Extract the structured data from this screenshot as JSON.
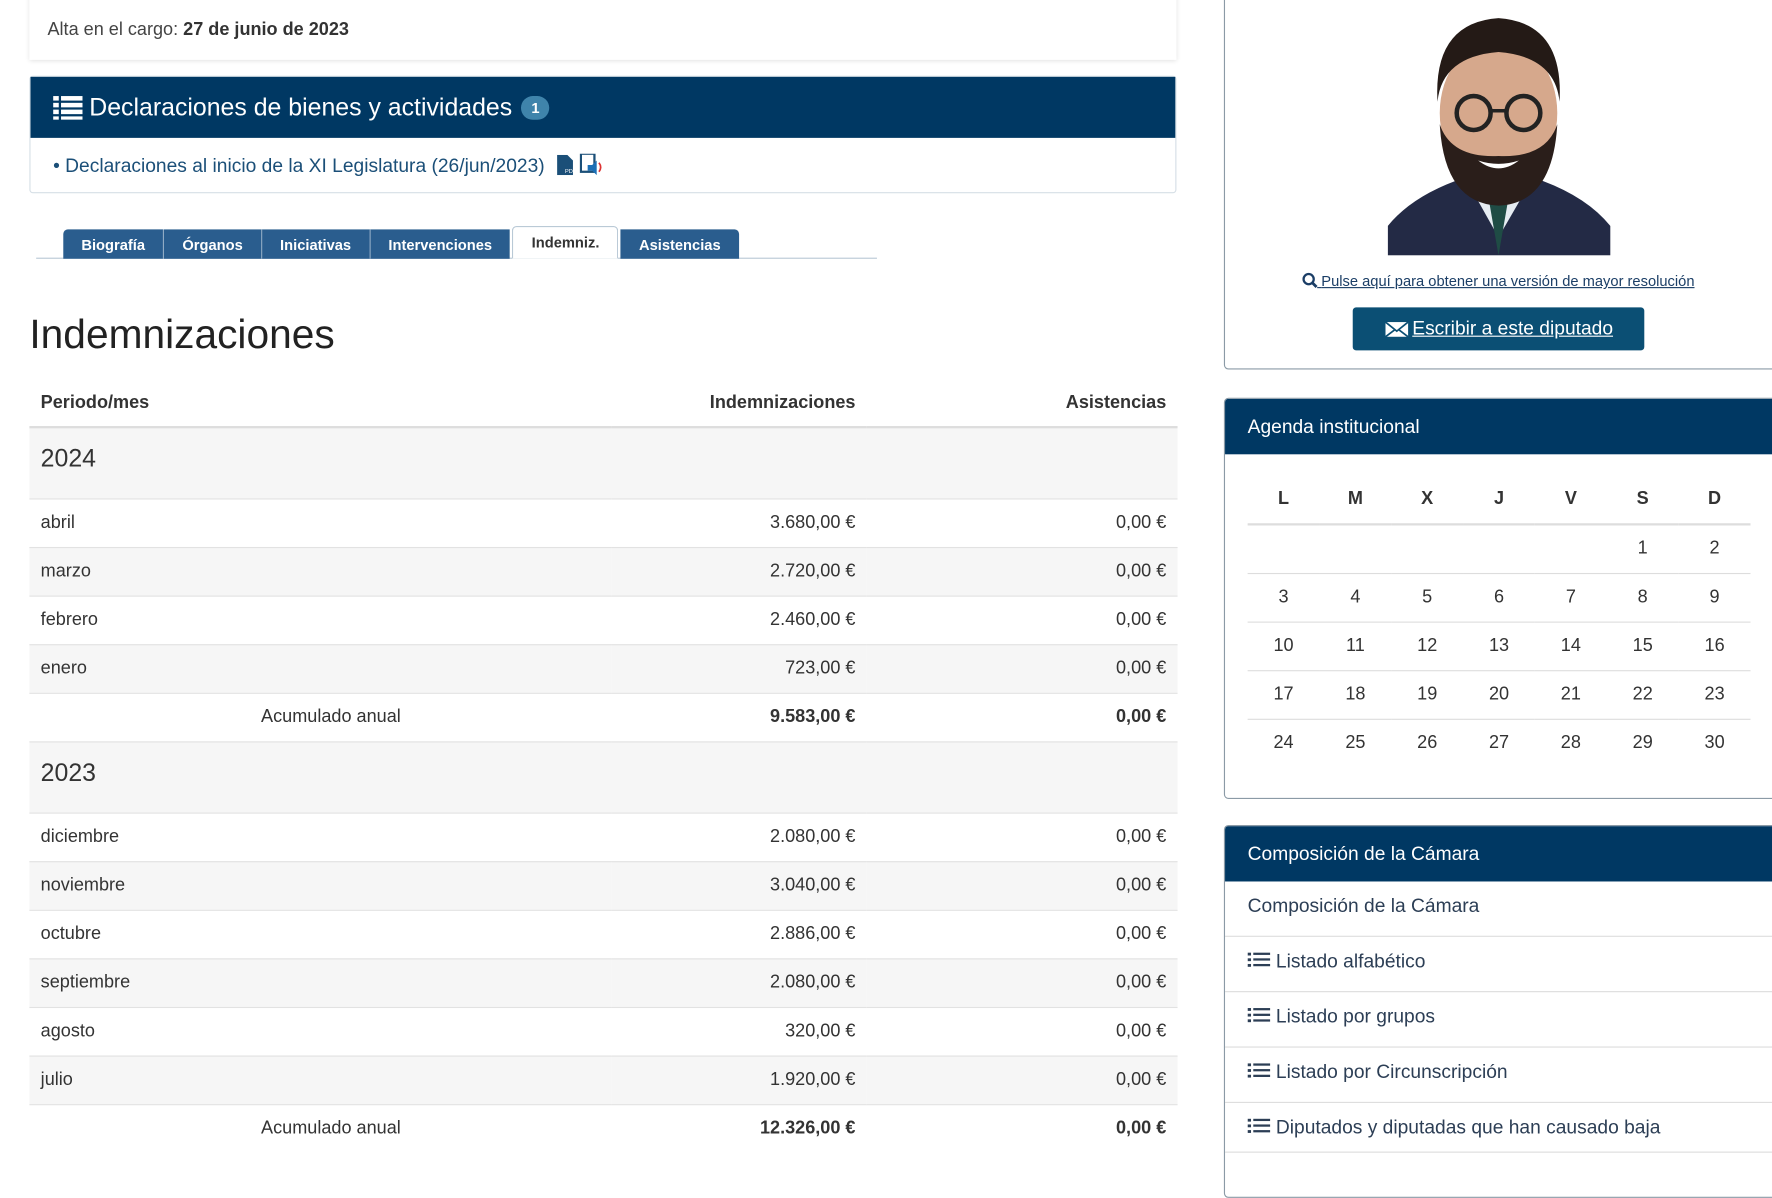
{
  "profile": {
    "alta_label": "Alta en el cargo:",
    "alta_value": "27 de junio de 2023",
    "hires_link": "Pulse aquí para obtener una versión de mayor resolución",
    "write_button": "Escribir a este diputado"
  },
  "declaraciones": {
    "title": "Declaraciones de bienes y actividades",
    "count": "1",
    "item": "• Declaraciones al inicio de la XI Legislatura (26/jun/2023)"
  },
  "tabs": [
    {
      "label": "Biografía"
    },
    {
      "label": "Órganos"
    },
    {
      "label": "Iniciativas"
    },
    {
      "label": "Intervenciones"
    },
    {
      "label": "Indemniz.",
      "active": true
    },
    {
      "label": "Asistencias"
    }
  ],
  "page_title": "Indemnizaciones",
  "table": {
    "headers": [
      "Periodo/mes",
      "Indemnizaciones",
      "Asistencias"
    ],
    "years": [
      {
        "year": "2024",
        "rows": [
          [
            "abril",
            "3.680,00 €",
            "0,00 €"
          ],
          [
            "marzo",
            "2.720,00 €",
            "0,00 €"
          ],
          [
            "febrero",
            "2.460,00 €",
            "0,00 €"
          ],
          [
            "enero",
            "723,00 €",
            "0,00 €"
          ]
        ],
        "total": [
          "Acumulado anual",
          "9.583,00 €",
          "0,00 €"
        ]
      },
      {
        "year": "2023",
        "rows": [
          [
            "diciembre",
            "2.080,00 €",
            "0,00 €"
          ],
          [
            "noviembre",
            "3.040,00 €",
            "0,00 €"
          ],
          [
            "octubre",
            "2.886,00 €",
            "0,00 €"
          ],
          [
            "septiembre",
            "2.080,00 €",
            "0,00 €"
          ],
          [
            "agosto",
            "320,00 €",
            "0,00 €"
          ],
          [
            "julio",
            "1.920,00 €",
            "0,00 €"
          ]
        ],
        "total": [
          "Acumulado anual",
          "12.326,00 €",
          "0,00 €"
        ]
      }
    ]
  },
  "agenda": {
    "title": "Agenda institucional",
    "days": [
      "L",
      "M",
      "X",
      "J",
      "V",
      "S",
      "D"
    ],
    "weeks": [
      [
        "",
        "",
        "",
        "",
        "",
        "1",
        "2"
      ],
      [
        "3",
        "4",
        "5",
        "6",
        "7",
        "8",
        "9"
      ],
      [
        "10",
        "11",
        "12",
        "13",
        "14",
        "15",
        "16"
      ],
      [
        "17",
        "18",
        "19",
        "20",
        "21",
        "22",
        "23"
      ],
      [
        "24",
        "25",
        "26",
        "27",
        "28",
        "29",
        "30"
      ]
    ]
  },
  "composicion": {
    "title": "Composición de la Cámara",
    "items": [
      {
        "label": "Composición de la Cámara",
        "icon": ""
      },
      {
        "label": "Listado alfabético",
        "icon": "list-icon"
      },
      {
        "label": "Listado por grupos",
        "icon": "list-icon"
      },
      {
        "label": "Listado por Circunscripción",
        "icon": "list-icon"
      },
      {
        "label": "Diputados y diputadas que han causado baja",
        "icon": "list-icon"
      }
    ]
  },
  "colors": {
    "navy": "#003863",
    "tab": "#2a5d8e",
    "button": "#0b4f74"
  }
}
